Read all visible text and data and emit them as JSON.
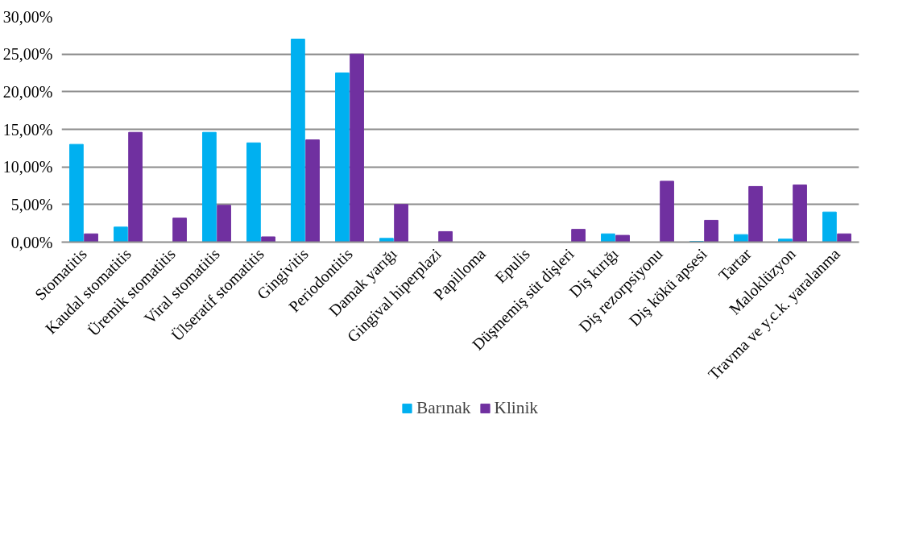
{
  "chart_data": {
    "type": "bar",
    "categories": [
      "Stomatitis",
      "Kaudal stomatitis",
      "Üremik stomatitis",
      "Viral stomatitis",
      "Ülseratif stomatitis",
      "Gingivitis",
      "Periodontitis",
      "Damak yarığı",
      "Gingival hiperplazi",
      "Papilloma",
      "Epulis",
      "Düşmemiş süt dişleri",
      "Diş kırığı",
      "Diş rezorpsiyonu",
      "Diş kökü apsesi",
      "Tartar",
      "Maloklüzyon",
      "Travma ve y.c.k. yaralanma"
    ],
    "series": [
      {
        "name": "Barınak",
        "color": "#00b0f0",
        "values": [
          13.0,
          2.0,
          0,
          14.6,
          13.2,
          27.0,
          22.5,
          0.5,
          0,
          0,
          0,
          0,
          1.1,
          0,
          0.1,
          1.0,
          0.4,
          4.0
        ]
      },
      {
        "name": "Klinik",
        "color": "#7030a0",
        "values": [
          1.1,
          14.6,
          3.2,
          4.9,
          0.7,
          13.6,
          25.0,
          5.0,
          1.4,
          0,
          0,
          1.7,
          0.9,
          8.1,
          2.9,
          7.4,
          7.6,
          1.1
        ]
      }
    ],
    "ylim": [
      0,
      30
    ],
    "yticks": [
      {
        "value": 0,
        "label": "0,00%"
      },
      {
        "value": 5,
        "label": "5,00%"
      },
      {
        "value": 10,
        "label": "10,00%"
      },
      {
        "value": 15,
        "label": "15,00%"
      },
      {
        "value": 20,
        "label": "20,00%"
      },
      {
        "value": 25,
        "label": "25,00%"
      },
      {
        "value": 30,
        "label": "30,00%"
      }
    ],
    "grid": "y",
    "legend": "bottom"
  }
}
